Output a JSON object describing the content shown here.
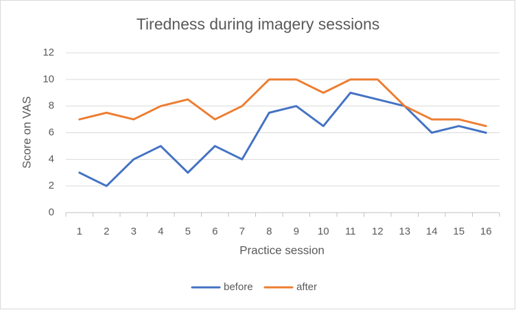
{
  "chart_data": {
    "type": "line",
    "title": "Tiredness during imagery sessions",
    "x_label": "Practice session",
    "y_label": "Score on VAS",
    "categories": [
      "1",
      "2",
      "3",
      "4",
      "5",
      "6",
      "7",
      "8",
      "9",
      "10",
      "11",
      "12",
      "13",
      "14",
      "15",
      "16"
    ],
    "series": [
      {
        "name": "before",
        "color": "#4472c4",
        "values": [
          3,
          2,
          4,
          5,
          3,
          5,
          4,
          7.5,
          8,
          6.5,
          9,
          8.5,
          8,
          6,
          6.5,
          6
        ]
      },
      {
        "name": "after",
        "color": "#ed7d31",
        "values": [
          7,
          7.5,
          7,
          8,
          8.5,
          7,
          8,
          10,
          10,
          9,
          10,
          10,
          8,
          7,
          7,
          6.5
        ]
      }
    ],
    "ylim": [
      0,
      12
    ],
    "yticks": [
      0,
      2,
      4,
      6,
      8,
      10,
      12
    ],
    "grid": true,
    "legend": "bottom"
  }
}
